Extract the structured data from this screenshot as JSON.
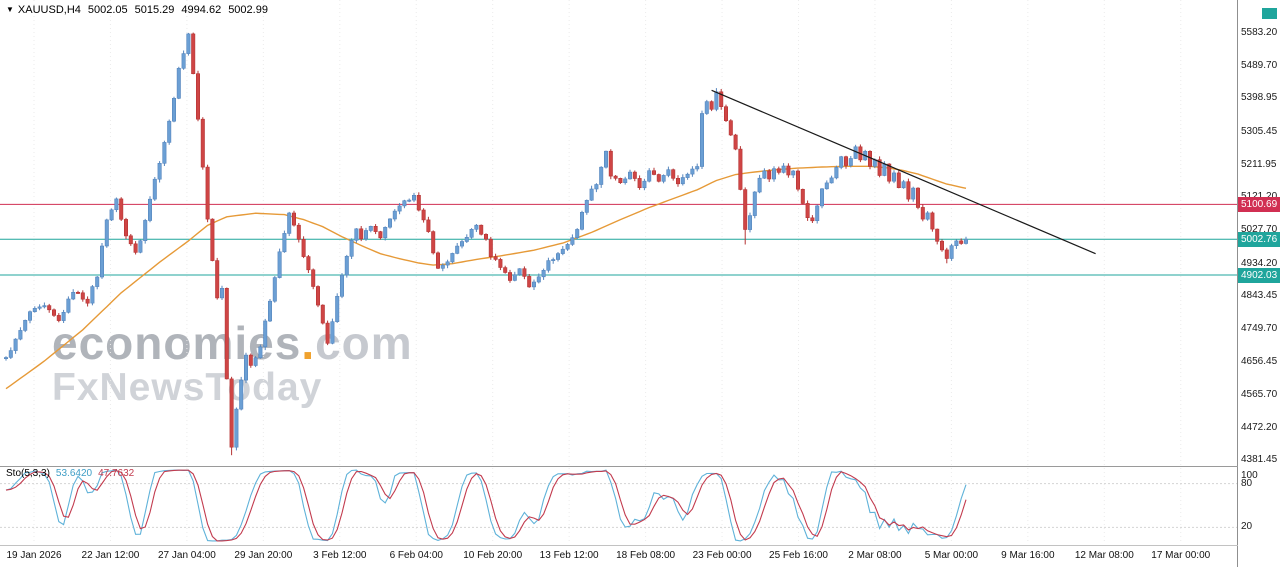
{
  "header": {
    "dropdown_icon": "▼",
    "symbol_period": "XAUUSD,H4",
    "open": "5002.05",
    "high": "5015.29",
    "low": "4994.62",
    "close": "5002.99"
  },
  "watermark": {
    "brand": "economies",
    "dot": ".",
    "tld": "com",
    "tagline": "FxNewsToday"
  },
  "indicator_header": {
    "name": "Sto(5,3,3)",
    "k_value": "53.6420",
    "d_value": "47.7632"
  },
  "price_axis": {
    "labels": [
      "5583.20",
      "5489.70",
      "5398.95",
      "5305.45",
      "5211.95",
      "5121.20",
      "5027.70",
      "4934.20",
      "4843.45",
      "4749.70",
      "4656.45",
      "4565.70",
      "4472.20",
      "4381.45"
    ]
  },
  "indicator_axis": {
    "labels": [
      {
        "text": "100",
        "value": 100
      },
      {
        "text": "80",
        "value": 80
      },
      {
        "text": "20",
        "value": 20
      }
    ]
  },
  "time_axis": {
    "labels": [
      "19 Jan 2026",
      "22 Jan 12:00",
      "27 Jan 04:00",
      "29 Jan 20:00",
      "3 Feb 12:00",
      "6 Feb 04:00",
      "10 Feb 20:00",
      "13 Feb 12:00",
      "18 Feb 08:00",
      "23 Feb 00:00",
      "25 Feb 16:00",
      "2 Mar 08:00",
      "5 Mar 00:00",
      "9 Mar 16:00",
      "12 Mar 08:00",
      "17 Mar 00:00"
    ]
  },
  "colors": {
    "bull": "#6b9fd4",
    "bull_border": "#5585bd",
    "bear": "#cf4545",
    "bear_border": "#b53434",
    "ma": "#e69a38",
    "trendline": "#1a1a1a",
    "resistance": "#d12f52",
    "support": "#1fa59c",
    "stoch_k": "#5fb2d9",
    "stoch_d": "#c23b4e",
    "grid": "#ebebeb",
    "level": "#d4d4d4",
    "axis_text": "#1a1a1a"
  },
  "chart_data": {
    "type": "candlestick",
    "symbol": "XAUUSD",
    "timeframe": "H4",
    "current_ohlc": {
      "open": 5002.05,
      "high": 5015.29,
      "low": 4994.62,
      "close": 5002.99
    },
    "y_range": {
      "min": 4381.45,
      "max": 5583.2
    },
    "candle_count": 201,
    "close_anchors": [
      [
        0,
        4670
      ],
      [
        2,
        4718
      ],
      [
        5,
        4798
      ],
      [
        8,
        4812
      ],
      [
        11,
        4772
      ],
      [
        14,
        4858
      ],
      [
        17,
        4828
      ],
      [
        19,
        4900
      ],
      [
        21,
        5062
      ],
      [
        23,
        5112
      ],
      [
        25,
        5012
      ],
      [
        27,
        4966
      ],
      [
        28,
        5004
      ],
      [
        30,
        5118
      ],
      [
        32,
        5222
      ],
      [
        34,
        5332
      ],
      [
        36,
        5478
      ],
      [
        38,
        5583
      ],
      [
        40,
        5345
      ],
      [
        41,
        5205
      ],
      [
        42,
        5062
      ],
      [
        43,
        4942
      ],
      [
        44,
        4838
      ],
      [
        45,
        4862
      ],
      [
        46,
        4608
      ],
      [
        47,
        4418
      ],
      [
        48,
        4528
      ],
      [
        50,
        4682
      ],
      [
        51,
        4648
      ],
      [
        53,
        4702
      ],
      [
        55,
        4832
      ],
      [
        57,
        4968
      ],
      [
        59,
        5072
      ],
      [
        60,
        5042
      ],
      [
        62,
        4958
      ],
      [
        64,
        4868
      ],
      [
        66,
        4762
      ],
      [
        67,
        4708
      ],
      [
        69,
        4842
      ],
      [
        71,
        4952
      ],
      [
        73,
        5038
      ],
      [
        74,
        5008
      ],
      [
        76,
        5042
      ],
      [
        78,
        5002
      ],
      [
        80,
        5062
      ],
      [
        82,
        5092
      ],
      [
        85,
        5132
      ],
      [
        86,
        5082
      ],
      [
        88,
        5022
      ],
      [
        90,
        4918
      ],
      [
        92,
        4942
      ],
      [
        94,
        4978
      ],
      [
        96,
        5012
      ],
      [
        98,
        5042
      ],
      [
        100,
        4998
      ],
      [
        101,
        4958
      ],
      [
        103,
        4928
      ],
      [
        105,
        4888
      ],
      [
        107,
        4922
      ],
      [
        109,
        4868
      ],
      [
        111,
        4902
      ],
      [
        113,
        4938
      ],
      [
        115,
        4962
      ],
      [
        117,
        4988
      ],
      [
        119,
        5032
      ],
      [
        121,
        5118
      ],
      [
        123,
        5162
      ],
      [
        125,
        5252
      ],
      [
        126,
        5182
      ],
      [
        128,
        5158
      ],
      [
        130,
        5188
      ],
      [
        132,
        5148
      ],
      [
        134,
        5192
      ],
      [
        136,
        5168
      ],
      [
        138,
        5202
      ],
      [
        140,
        5158
      ],
      [
        142,
        5188
      ],
      [
        144,
        5212
      ],
      [
        145,
        5352
      ],
      [
        146,
        5396
      ],
      [
        147,
        5368
      ],
      [
        148,
        5418
      ],
      [
        149,
        5378
      ],
      [
        150,
        5338
      ],
      [
        151,
        5298
      ],
      [
        152,
        5258
      ],
      [
        153,
        5148
      ],
      [
        154,
        5028
      ],
      [
        155,
        5072
      ],
      [
        156,
        5138
      ],
      [
        157,
        5172
      ],
      [
        158,
        5196
      ],
      [
        159,
        5178
      ],
      [
        160,
        5206
      ],
      [
        161,
        5188
      ],
      [
        162,
        5212
      ],
      [
        163,
        5182
      ],
      [
        164,
        5196
      ],
      [
        165,
        5148
      ],
      [
        166,
        5108
      ],
      [
        167,
        5068
      ],
      [
        168,
        5052
      ],
      [
        169,
        5098
      ],
      [
        170,
        5142
      ],
      [
        171,
        5162
      ],
      [
        172,
        5178
      ],
      [
        174,
        5232
      ],
      [
        175,
        5212
      ],
      [
        177,
        5258
      ],
      [
        178,
        5228
      ],
      [
        179,
        5246
      ],
      [
        180,
        5208
      ],
      [
        181,
        5232
      ],
      [
        182,
        5188
      ],
      [
        183,
        5212
      ],
      [
        184,
        5168
      ],
      [
        185,
        5186
      ],
      [
        186,
        5148
      ],
      [
        187,
        5166
      ],
      [
        188,
        5118
      ],
      [
        189,
        5142
      ],
      [
        190,
        5092
      ],
      [
        191,
        5058
      ],
      [
        192,
        5076
      ],
      [
        193,
        5028
      ],
      [
        194,
        4992
      ],
      [
        195,
        4968
      ],
      [
        196,
        4948
      ],
      [
        197,
        4986
      ],
      [
        198,
        5002
      ],
      [
        199,
        4988
      ],
      [
        200,
        5003
      ]
    ],
    "ma_anchors": [
      [
        0,
        4582
      ],
      [
        8,
        4660
      ],
      [
        16,
        4748
      ],
      [
        24,
        4852
      ],
      [
        32,
        4938
      ],
      [
        38,
        4998
      ],
      [
        42,
        5042
      ],
      [
        46,
        5066
      ],
      [
        52,
        5076
      ],
      [
        58,
        5072
      ],
      [
        62,
        5058
      ],
      [
        66,
        5038
      ],
      [
        70,
        5010
      ],
      [
        74,
        4985
      ],
      [
        78,
        4962
      ],
      [
        82,
        4948
      ],
      [
        86,
        4936
      ],
      [
        89,
        4930
      ],
      [
        93,
        4934
      ],
      [
        98,
        4946
      ],
      [
        104,
        4958
      ],
      [
        110,
        4972
      ],
      [
        116,
        4992
      ],
      [
        122,
        5022
      ],
      [
        128,
        5058
      ],
      [
        134,
        5092
      ],
      [
        140,
        5122
      ],
      [
        144,
        5142
      ],
      [
        148,
        5168
      ],
      [
        152,
        5185
      ],
      [
        156,
        5192
      ],
      [
        160,
        5198
      ],
      [
        165,
        5203
      ],
      [
        170,
        5206
      ],
      [
        175,
        5208
      ],
      [
        180,
        5208
      ],
      [
        184,
        5203
      ],
      [
        187,
        5196
      ],
      [
        190,
        5186
      ],
      [
        193,
        5172
      ],
      [
        196,
        5158
      ],
      [
        200,
        5146
      ]
    ],
    "trendline": {
      "i1": 147,
      "p1": 5422,
      "i2": 227,
      "p2": 4962
    },
    "hlines": [
      {
        "price": 5100.69,
        "label": "5100.69",
        "color": "#d12f52"
      },
      {
        "price": 5002.76,
        "label": "5002.76",
        "color": "#1fa59c"
      },
      {
        "price": 4902.03,
        "label": "4902.03",
        "color": "#1fa59c"
      }
    ],
    "wick_events": {
      "47": {
        "low": 4395
      },
      "148": {
        "high": 5428
      },
      "154": {
        "low": 4988
      },
      "196": {
        "low": 4935
      }
    },
    "stochastic": {
      "params": [
        5,
        3,
        3
      ],
      "k_current": 53.642,
      "d_current": 47.7632,
      "levels": [
        80,
        20
      ],
      "scale_max": 100,
      "scale_min": 0
    }
  }
}
